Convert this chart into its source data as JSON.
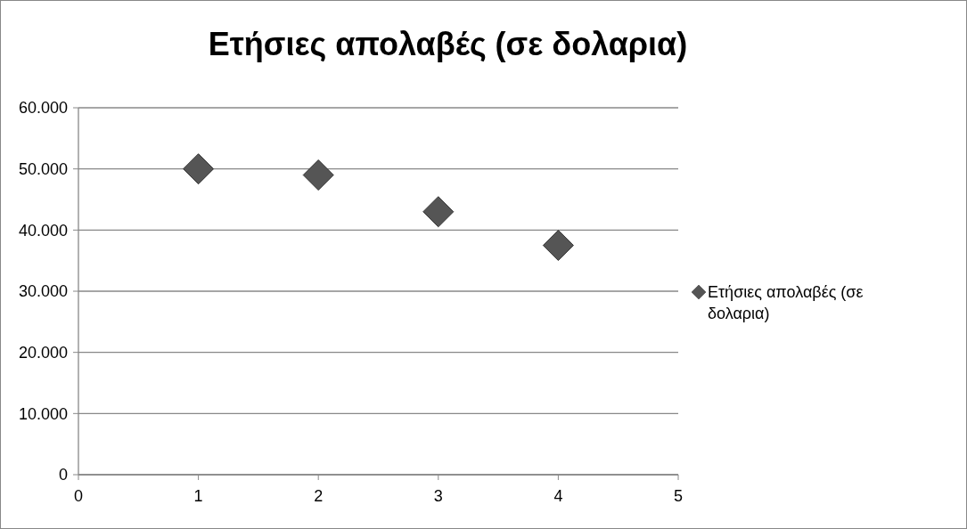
{
  "chart_data": {
    "type": "scatter",
    "title": "Ετήσιες απολαβές (σε δολαρια)",
    "x": [
      1,
      2,
      3,
      4
    ],
    "series": [
      {
        "name": "Ετήσιες απολαβές (σε δολαρια)",
        "color": "#555555",
        "values": [
          50000,
          49000,
          43000,
          37500
        ]
      }
    ],
    "xlim": [
      0,
      5
    ],
    "xticks": [
      0,
      1,
      2,
      3,
      4,
      5
    ],
    "ylim": [
      0,
      60000
    ],
    "yticks": [
      0,
      {
        "value": 10000,
        "label": "10.000"
      },
      {
        "value": 20000,
        "label": "20.000"
      },
      {
        "value": 30000,
        "label": "30.000"
      },
      {
        "value": 40000,
        "label": "40.000"
      },
      {
        "value": 50000,
        "label": "50.000"
      },
      {
        "value": 60000,
        "label": "60.000"
      }
    ],
    "grid": "y",
    "legend": "right",
    "marker": "diamond"
  }
}
